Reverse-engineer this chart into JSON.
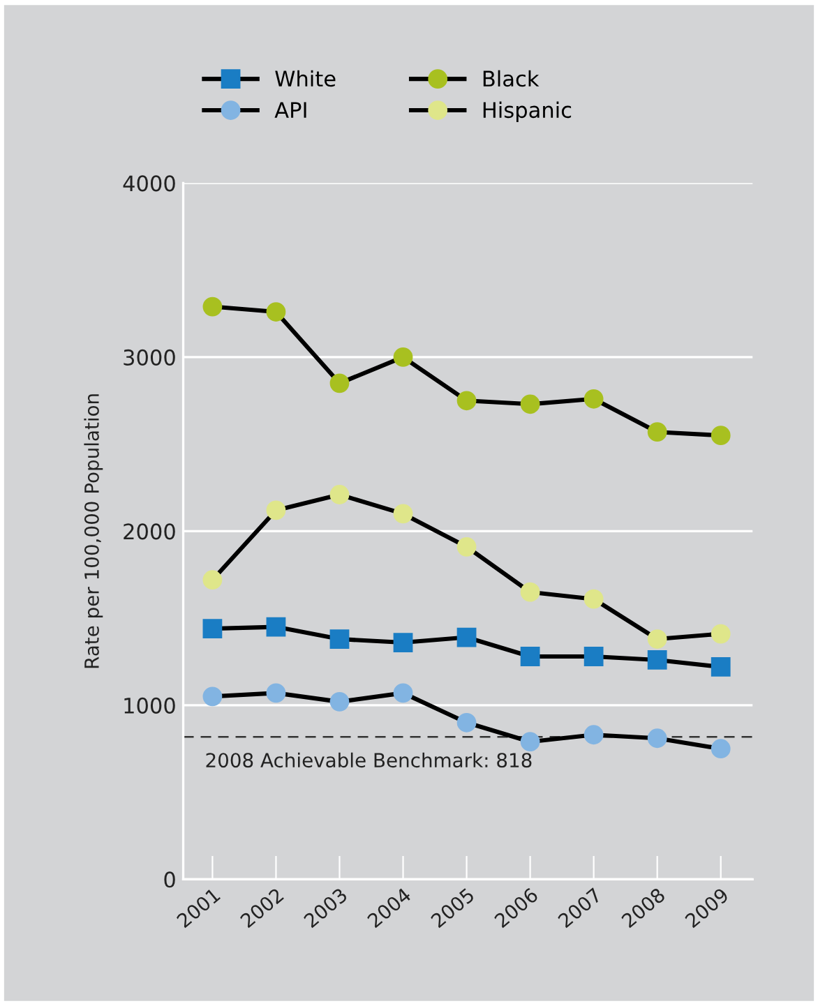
{
  "chart_data": {
    "type": "line",
    "ylabel": "Rate per 100,000 Population",
    "categories": [
      "2001",
      "2002",
      "2003",
      "2004",
      "2005",
      "2006",
      "2007",
      "2008",
      "2009"
    ],
    "series": [
      {
        "name": "White",
        "color": "#1a7dc4",
        "marker": "square",
        "values": [
          1440,
          1450,
          1380,
          1360,
          1390,
          1280,
          1280,
          1260,
          1220
        ]
      },
      {
        "name": "API",
        "color": "#82b4e2",
        "marker": "circle",
        "values": [
          1050,
          1070,
          1020,
          1070,
          900,
          790,
          830,
          810,
          750
        ]
      },
      {
        "name": "Black",
        "color": "#a8c020",
        "marker": "circle",
        "values": [
          3290,
          3260,
          2850,
          3000,
          2750,
          2730,
          2760,
          2570,
          2550
        ]
      },
      {
        "name": "Hispanic",
        "color": "#dfe68a",
        "marker": "circle",
        "values": [
          1720,
          2120,
          2210,
          2100,
          1910,
          1650,
          1610,
          1380,
          1410
        ]
      }
    ],
    "ylim": [
      0,
      4000
    ],
    "yticks": [
      0,
      1000,
      2000,
      3000,
      4000
    ],
    "grid": "y",
    "legend": "top",
    "line_style": "solid",
    "ref_lines": [
      {
        "axis": "y",
        "value": 818,
        "label": "2008 Achievable Benchmark: 818",
        "line_style": "dashed",
        "color": "#333333"
      }
    ]
  }
}
